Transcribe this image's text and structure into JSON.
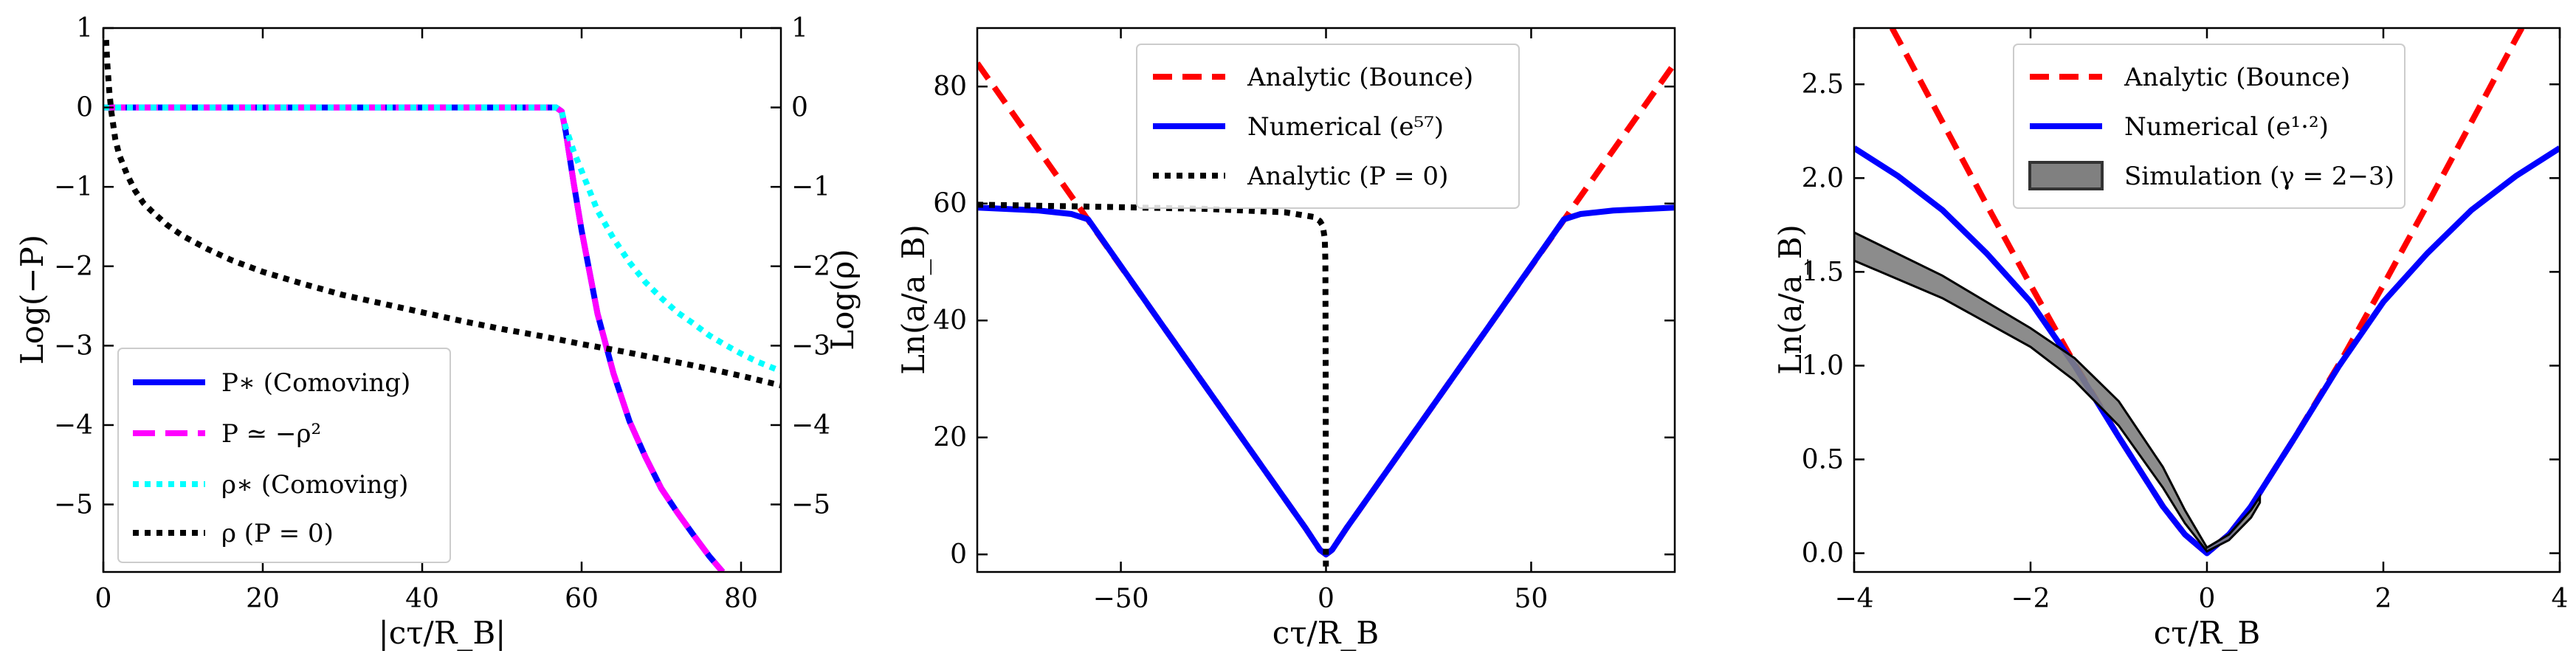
{
  "chart_data": [
    {
      "type": "line",
      "xlabel": "|cτ/R_B|",
      "ylabel": "Log(−P)",
      "y2label": "Log(ρ)",
      "xlim": [
        0,
        85
      ],
      "ylim": [
        -5.85,
        1.0
      ],
      "y2lim": [
        -5.85,
        1.0
      ],
      "xticks": [
        0,
        20,
        40,
        60,
        80
      ],
      "xtick_labels": [
        "0",
        "20",
        "40",
        "60",
        "80"
      ],
      "yticks": [
        1,
        0,
        -1,
        -2,
        -3,
        -4,
        -5
      ],
      "ytick_labels": [
        "1",
        "0",
        "−1",
        "−2",
        "−3",
        "−4",
        "−5"
      ],
      "y2ticks": [
        1,
        0,
        -1,
        -2,
        -3,
        -4,
        -5
      ],
      "y2tick_labels": [
        "1",
        "0",
        "−1",
        "−2",
        "−3",
        "−4",
        "−5"
      ],
      "legend_position": "lower-left",
      "series": [
        {
          "name": "P_* (Comoving)",
          "legend": "P∗ (Comoving)",
          "color": "#0000ff",
          "dash": "solid",
          "x": [
            0,
            10,
            20,
            30,
            40,
            50,
            55,
            56.8,
            57.5,
            58,
            59,
            60,
            62,
            64,
            66,
            68,
            70,
            72,
            74,
            76,
            77.7
          ],
          "y": [
            0,
            0,
            0,
            0,
            0,
            0,
            0,
            0,
            -0.05,
            -0.3,
            -0.95,
            -1.55,
            -2.6,
            -3.35,
            -3.95,
            -4.4,
            -4.8,
            -5.1,
            -5.38,
            -5.65,
            -5.85
          ]
        },
        {
          "name": "P ≃ −ρ^2",
          "legend": "P ≃ −ρ²",
          "color": "#ff00ff",
          "dash": "long-dash",
          "x": [
            0,
            10,
            20,
            30,
            40,
            50,
            55,
            56.8,
            57.5,
            58,
            59,
            60,
            62,
            64,
            66,
            68,
            70,
            72,
            74,
            76,
            77.7
          ],
          "y": [
            0,
            0,
            0,
            0,
            0,
            0,
            0,
            0,
            -0.05,
            -0.3,
            -0.95,
            -1.55,
            -2.6,
            -3.35,
            -3.95,
            -4.4,
            -4.8,
            -5.1,
            -5.38,
            -5.65,
            -5.85
          ]
        },
        {
          "name": "ρ_* (Comoving)",
          "legend": "ρ∗ (Comoving)",
          "color": "#00ffff",
          "dash": "dotted",
          "x": [
            0,
            20,
            40,
            56.8,
            57.5,
            58,
            59,
            60,
            62,
            64,
            66,
            68,
            70,
            72,
            74,
            76,
            78,
            80,
            82,
            85
          ],
          "y": [
            0,
            0,
            0,
            0,
            -0.05,
            -0.25,
            -0.55,
            -0.8,
            -1.3,
            -1.65,
            -1.95,
            -2.2,
            -2.4,
            -2.58,
            -2.72,
            -2.87,
            -2.99,
            -3.1,
            -3.2,
            -3.32
          ]
        },
        {
          "name": "ρ (P=0)",
          "legend": "ρ (P = 0)",
          "color": "#000000",
          "dash": "dotted",
          "x": [
            0.35,
            0.5,
            0.75,
            1,
            1.5,
            2,
            3,
            4,
            5,
            6,
            8,
            10,
            13,
            16,
            20,
            25,
            30,
            35,
            40,
            45,
            50,
            55,
            60,
            65,
            70,
            75,
            80,
            85
          ],
          "y": [
            0.85,
            0.55,
            0.2,
            -0.05,
            -0.4,
            -0.6,
            -0.85,
            -1.05,
            -1.2,
            -1.3,
            -1.48,
            -1.62,
            -1.78,
            -1.92,
            -2.07,
            -2.22,
            -2.36,
            -2.47,
            -2.58,
            -2.69,
            -2.79,
            -2.88,
            -2.98,
            -3.07,
            -3.17,
            -3.27,
            -3.38,
            -3.5
          ]
        }
      ]
    },
    {
      "type": "line",
      "xlabel": "cτ/R_B",
      "ylabel": "Ln(a/a_B)",
      "xlim": [
        -85,
        85
      ],
      "ylim": [
        -3,
        90
      ],
      "xticks": [
        -50,
        0,
        50
      ],
      "xtick_labels": [
        "−50",
        "0",
        "50"
      ],
      "yticks": [
        0,
        20,
        40,
        60,
        80
      ],
      "ytick_labels": [
        "0",
        "20",
        "40",
        "60",
        "80"
      ],
      "legend_position": "top-center",
      "series": [
        {
          "name": "Analytic (Bounce)",
          "legend": "Analytic (Bounce)",
          "color": "#ff0000",
          "dash": "dashed",
          "x": [
            -85,
            -60,
            -40,
            -20,
            -5,
            -1.5,
            0,
            1.5,
            5,
            20,
            40,
            60,
            85
          ],
          "y": [
            84,
            59.2,
            39.3,
            19.4,
            4.5,
            0.8,
            0,
            0.8,
            4.5,
            19.4,
            39.3,
            59.2,
            84
          ]
        },
        {
          "name": "Numerical (e^57)",
          "legend": "Numerical (e⁵⁷)",
          "color": "#0000ff",
          "dash": "solid",
          "x": [
            -85,
            -70,
            -62,
            -58,
            -57,
            -40,
            -20,
            -5,
            -1.5,
            0,
            1.5,
            5,
            20,
            40,
            57,
            58,
            62,
            70,
            85
          ],
          "y": [
            59.3,
            58.8,
            58.2,
            57.3,
            56.3,
            39.3,
            19.4,
            4.5,
            0.8,
            0,
            0.8,
            4.5,
            19.4,
            39.3,
            56.3,
            57.3,
            58.2,
            58.8,
            59.3
          ]
        },
        {
          "name": "Analytic (P=0)",
          "legend": "Analytic (P = 0)",
          "color": "#000000",
          "dash": "dotted",
          "x": [
            -85,
            -60,
            -30,
            -10,
            -3,
            -1.5,
            -0.8,
            -0.3,
            -0.15,
            -0.08,
            -0.03
          ],
          "y": [
            59.8,
            59.5,
            59.1,
            58.5,
            57.7,
            57.0,
            56.2,
            54.0,
            50.0,
            30.0,
            -3
          ]
        }
      ]
    },
    {
      "type": "line",
      "xlabel": "cτ/R_B",
      "ylabel": "Ln(a/a_B)",
      "xlim": [
        -4,
        4
      ],
      "ylim": [
        -0.1,
        2.8
      ],
      "xticks": [
        -4,
        -2,
        0,
        2,
        4
      ],
      "xtick_labels": [
        "−4",
        "−2",
        "0",
        "2",
        "4"
      ],
      "yticks": [
        0.0,
        0.5,
        1.0,
        1.5,
        2.0,
        2.5
      ],
      "ytick_labels": [
        "0.0",
        "0.5",
        "1.0",
        "1.5",
        "2.0",
        "2.5"
      ],
      "legend_position": "top-center",
      "series": [
        {
          "name": "Analytic (Bounce)",
          "legend": "Analytic (Bounce)",
          "color": "#ff0000",
          "dash": "dashed",
          "x": [
            -3.57,
            -3.5,
            -3,
            -2.5,
            -2,
            -1.5,
            -1,
            -0.5,
            -0.25,
            0,
            0.25,
            0.5,
            1,
            1.5,
            2,
            2.5,
            3,
            3.5,
            3.57
          ],
          "y": [
            2.8,
            2.74,
            2.3,
            1.86,
            1.43,
            1.01,
            0.62,
            0.25,
            0.1,
            0,
            0.1,
            0.25,
            0.62,
            1.01,
            1.43,
            1.86,
            2.3,
            2.74,
            2.8
          ]
        },
        {
          "name": "Numerical (e^1.2)",
          "legend": "Numerical (e¹·²)",
          "color": "#0000ff",
          "dash": "solid",
          "x": [
            -4,
            -3.5,
            -3,
            -2.5,
            -2,
            -1.5,
            -1,
            -0.5,
            -0.25,
            0,
            0.25,
            0.5,
            1,
            1.5,
            2,
            2.5,
            3,
            3.5,
            4
          ],
          "y": [
            2.16,
            2.01,
            1.83,
            1.6,
            1.34,
            1.0,
            0.62,
            0.25,
            0.1,
            0,
            0.1,
            0.25,
            0.62,
            1.0,
            1.34,
            1.6,
            1.83,
            2.01,
            2.16
          ]
        },
        {
          "name": "Simulation (γ=2−3)",
          "legend": "Simulation (γ = 2−3)",
          "color": "#808080",
          "dash": "band",
          "x": [
            -4,
            -3,
            -2,
            -1.5,
            -1,
            -0.5,
            -0.25,
            0,
            0.25,
            0.5,
            0.6
          ],
          "upper": [
            1.71,
            1.48,
            1.2,
            1.04,
            0.81,
            0.46,
            0.23,
            0.03,
            0.1,
            0.23,
            0.3
          ],
          "lower": [
            1.56,
            1.36,
            1.1,
            0.92,
            0.68,
            0.35,
            0.16,
            0.01,
            0.07,
            0.19,
            0.27
          ]
        }
      ]
    }
  ]
}
